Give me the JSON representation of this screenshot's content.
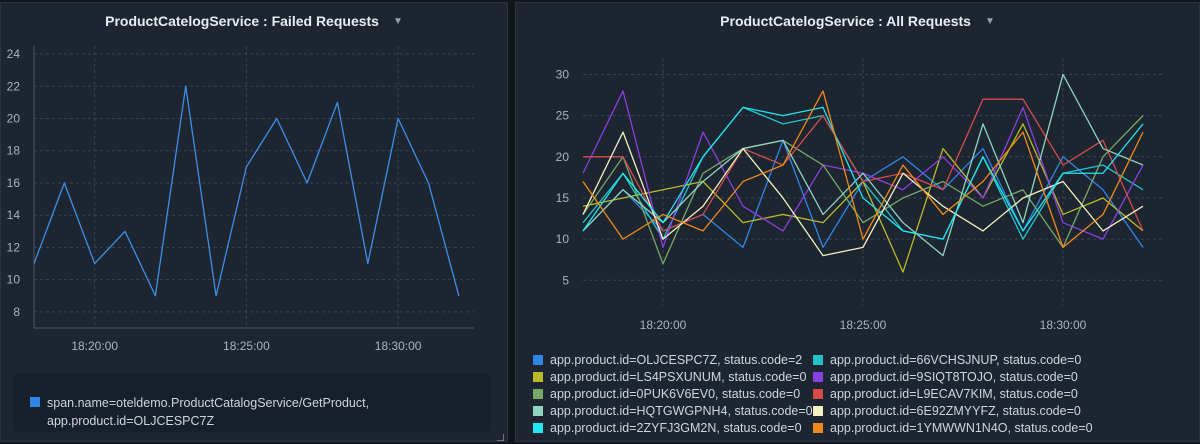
{
  "left_panel": {
    "title": "ProductCatelogService : Failed Requests",
    "legend_label": "span.name=oteldemo.ProductCatalogService/GetProduct,",
    "legend_label2": "app.product.id=OLJCESPC7Z"
  },
  "right_panel": {
    "title": "ProductCatelogService : All Requests"
  },
  "chart_data": [
    {
      "type": "line",
      "title": "ProductCatelogService : Failed Requests",
      "x_ticks": [
        "18:20:00",
        "18:25:00",
        "18:30:00"
      ],
      "x_tick_positions": [
        2,
        7,
        12
      ],
      "xlim": [
        0,
        14.5
      ],
      "ylim": [
        7,
        24.5
      ],
      "y_ticks": [
        8,
        10,
        12,
        14,
        16,
        18,
        20,
        22,
        24
      ],
      "grid": true,
      "series": [
        {
          "name": "span.name=oteldemo.ProductCatalogService/GetProduct, app.product.id=OLJCESPC7Z",
          "color": "#3d8fe8",
          "values": [
            11,
            16,
            11,
            13,
            9,
            22,
            9,
            17,
            20,
            16,
            21,
            11,
            20,
            16,
            9
          ]
        }
      ]
    },
    {
      "type": "line",
      "title": "ProductCatelogService : All Requests",
      "x_ticks": [
        "18:20:00",
        "18:25:00",
        "18:30:00"
      ],
      "x_tick_positions": [
        2,
        7,
        12
      ],
      "xlim": [
        0,
        14.5
      ],
      "ylim": [
        2,
        32
      ],
      "y_ticks": [
        5,
        10,
        15,
        20,
        25,
        30
      ],
      "grid": true,
      "series": [
        {
          "name": "app.product.id=OLJCESPC7Z, status.code=2",
          "color": "#2f86e6",
          "values": [
            11,
            16,
            11,
            13,
            9,
            22,
            9,
            17,
            20,
            16,
            21,
            11,
            20,
            16,
            9
          ]
        },
        {
          "name": "app.product.id=66VCHSJNUP, status.code=0",
          "color": "#22c4cc",
          "values": [
            12,
            18,
            10,
            20,
            26,
            24,
            25,
            17,
            11,
            10,
            20,
            10,
            18,
            19,
            16
          ]
        },
        {
          "name": "app.product.id=LS4PSXUNUM, status.code=0",
          "color": "#b9b92c",
          "values": [
            14,
            15,
            16,
            17,
            12,
            13,
            12,
            17,
            6,
            21,
            15,
            24,
            13,
            15,
            11
          ]
        },
        {
          "name": "app.product.id=9SIQT8TOJO, status.code=0",
          "color": "#8a3fe0",
          "values": [
            18,
            28,
            9,
            23,
            14,
            11,
            19,
            18,
            16,
            20,
            15,
            26,
            12,
            10,
            19
          ]
        },
        {
          "name": "app.product.id=0PUK6V6EV0, status.code=0",
          "color": "#77a86a",
          "values": [
            13,
            20,
            7,
            18,
            21,
            22,
            19,
            12,
            15,
            17,
            14,
            16,
            9,
            20,
            25
          ]
        },
        {
          "name": "app.product.id=L9ECAV7KIM, status.code=0",
          "color": "#d24c4c",
          "values": [
            20,
            20,
            11,
            13,
            21,
            19,
            25,
            17,
            18,
            16,
            27,
            27,
            19,
            22,
            11
          ]
        },
        {
          "name": "app.product.id=HQTGWGPNH4, status.code=0",
          "color": "#8fd3c0",
          "values": [
            11,
            16,
            12,
            17,
            21,
            22,
            13,
            18,
            12,
            8,
            24,
            12,
            30,
            21,
            19
          ]
        },
        {
          "name": "app.product.id=6E92ZMYYFZ, status.code=0",
          "color": "#f3f0c0",
          "values": [
            13,
            23,
            10,
            14,
            21,
            15,
            8,
            9,
            18,
            14,
            11,
            15,
            17,
            11,
            14
          ]
        },
        {
          "name": "app.product.id=2ZYFJ3GM2N, status.code=0",
          "color": "#22e6f0",
          "values": [
            11,
            18,
            12,
            20,
            26,
            25,
            26,
            15,
            11,
            10,
            20,
            11,
            18,
            18,
            24
          ]
        },
        {
          "name": "app.product.id=1YMWWN1N4O, status.code=0",
          "color": "#ee8a1a",
          "values": [
            17,
            10,
            13,
            11,
            17,
            19,
            28,
            10,
            19,
            13,
            17,
            23,
            9,
            13,
            23
          ]
        }
      ]
    }
  ]
}
